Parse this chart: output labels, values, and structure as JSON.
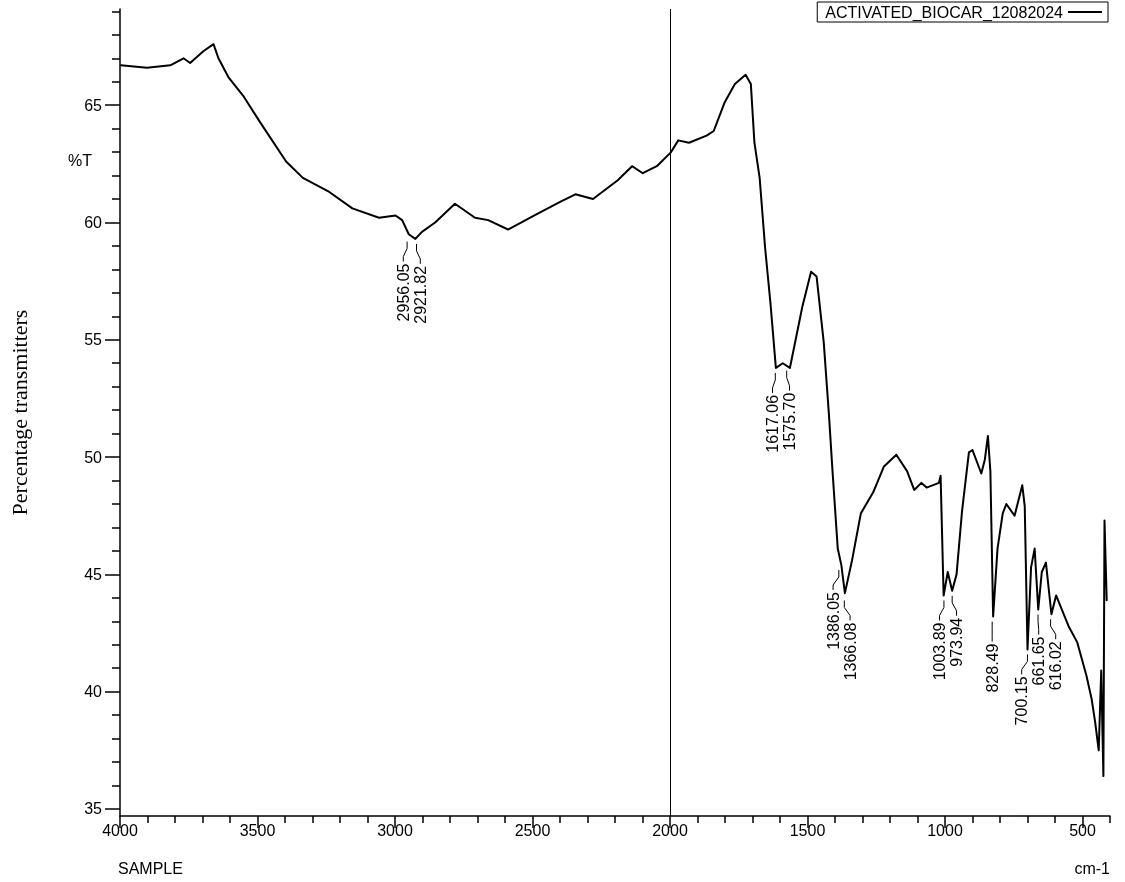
{
  "chart_data": {
    "type": "line",
    "xlabel": "cm-1",
    "ylabel": "Percentage transmitters",
    "xlim": [
      4000,
      400
    ],
    "ylim": [
      34.7,
      69.1
    ],
    "xticks": [
      4000,
      {
        "value": 3900,
        "label": null
      },
      {
        "value": 3800,
        "label": null
      },
      {
        "value": 3700,
        "label": null
      },
      {
        "value": 3600,
        "label": null
      },
      3500,
      {
        "value": 3400,
        "label": null
      },
      {
        "value": 3300,
        "label": null
      },
      {
        "value": 3200,
        "label": null
      },
      {
        "value": 3100,
        "label": null
      },
      3000,
      {
        "value": 2900,
        "label": null
      },
      {
        "value": 2800,
        "label": null
      },
      {
        "value": 2700,
        "label": null
      },
      {
        "value": 2600,
        "label": null
      },
      2500,
      {
        "value": 2400,
        "label": null
      },
      {
        "value": 2300,
        "label": null
      },
      {
        "value": 2200,
        "label": null
      },
      {
        "value": 2100,
        "label": null
      },
      2000,
      {
        "value": 1900,
        "label": null
      },
      {
        "value": 1800,
        "label": null
      },
      {
        "value": 1700,
        "label": null
      },
      {
        "value": 1600,
        "label": null
      },
      1500,
      {
        "value": 1400,
        "label": null
      },
      {
        "value": 1300,
        "label": null
      },
      {
        "value": 1200,
        "label": null
      },
      {
        "value": 1100,
        "label": null
      },
      1000,
      {
        "value": 900,
        "label": null
      },
      {
        "value": 800,
        "label": null
      },
      {
        "value": 700,
        "label": null
      },
      {
        "value": 600,
        "label": null
      },
      500,
      {
        "value": 400,
        "label": null
      }
    ],
    "yticks": [
      35,
      {
        "value": 36,
        "label": null
      },
      {
        "value": 37,
        "label": null
      },
      {
        "value": 38,
        "label": null
      },
      {
        "value": 39,
        "label": null
      },
      40,
      {
        "value": 41,
        "label": null
      },
      {
        "value": 42,
        "label": null
      },
      {
        "value": 43,
        "label": null
      },
      {
        "value": 44,
        "label": null
      },
      45,
      {
        "value": 46,
        "label": null
      },
      {
        "value": 47,
        "label": null
      },
      {
        "value": 48,
        "label": null
      },
      {
        "value": 49,
        "label": null
      },
      50,
      {
        "value": 51,
        "label": null
      },
      {
        "value": 52,
        "label": null
      },
      {
        "value": 53,
        "label": null
      },
      {
        "value": 54,
        "label": null
      },
      55,
      {
        "value": 56,
        "label": null
      },
      {
        "value": 57,
        "label": null
      },
      {
        "value": 58,
        "label": null
      },
      {
        "value": 59,
        "label": null
      },
      60,
      {
        "value": 61,
        "label": null
      },
      {
        "value": 62,
        "label": null
      },
      {
        "value": 63,
        "label": null
      },
      {
        "value": 64,
        "label": null
      },
      65,
      {
        "value": 66,
        "label": null
      },
      {
        "value": 67,
        "label": null
      },
      {
        "value": 68,
        "label": null
      },
      {
        "value": 69,
        "label": null
      }
    ],
    "grid": false,
    "legend": "top right",
    "marker": "none",
    "line_style": "solid",
    "ref_lines": [
      {
        "axis": "x",
        "value": 2000,
        "label": null,
        "color": "#000000"
      }
    ],
    "annotations": [
      "%T",
      "SAMPLE",
      {
        "text": "2956.05",
        "x": 2956.05,
        "y": 59.4
      },
      {
        "text": "2921.82",
        "x": 2921.82,
        "y": 59.3
      },
      {
        "text": "1617.06",
        "x": 1617.06,
        "y": 53.8
      },
      {
        "text": "1575.70",
        "x": 1575.7,
        "y": 53.9
      },
      {
        "text": "1386.05",
        "x": 1386.05,
        "y": 45.4
      },
      {
        "text": "1366.08",
        "x": 1366.08,
        "y": 44.1
      },
      {
        "text": "1003.89",
        "x": 1003.89,
        "y": 44.1
      },
      {
        "text": "973.94",
        "x": 973.94,
        "y": 44.3
      },
      {
        "text": "828.49",
        "x": 828.49,
        "y": 43.2
      },
      {
        "text": "700.15",
        "x": 700.15,
        "y": 41.8
      },
      {
        "text": "661.65",
        "x": 661.65,
        "y": 43.5
      },
      {
        "text": "616.02",
        "x": 616.02,
        "y": 43.3
      }
    ],
    "series": [
      {
        "name": "ACTIVATED_BIOCAR_12082024",
        "color": "#000000",
        "x": [
          3997,
          3902,
          3817,
          3769,
          3745,
          3697,
          3660,
          3642,
          3606,
          3552,
          3492,
          3396,
          3335,
          3239,
          3155,
          3058,
          2998,
          2974,
          2950,
          2926,
          2902,
          2854,
          2782,
          2709,
          2661,
          2589,
          2493,
          2396,
          2344,
          2280,
          2190,
          2138,
          2099,
          2048,
          1996,
          1970,
          1931,
          1867,
          1841,
          1802,
          1764,
          1725,
          1706,
          1693,
          1674,
          1654,
          1635,
          1615,
          1590,
          1564,
          1519,
          1487,
          1467,
          1441,
          1422,
          1409,
          1390,
          1377,
          1364,
          1338,
          1306,
          1261,
          1222,
          1177,
          1138,
          1112,
          1086,
          1067,
          1022,
          1016,
          1005,
          990,
          974,
          958,
          938,
          913,
          900,
          868,
          855,
          844,
          835,
          825,
          809,
          790,
          777,
          747,
          719,
          710,
          700,
          687,
          674,
          661,
          648,
          633,
          613,
          596,
          551,
          519,
          486,
          467,
          454,
          441,
          432,
          424,
          420,
          412
        ],
        "values": [
          66.7,
          66.6,
          66.7,
          67.0,
          66.8,
          67.3,
          67.6,
          67.0,
          66.2,
          65.4,
          64.3,
          62.6,
          61.9,
          61.3,
          60.6,
          60.2,
          60.3,
          60.1,
          59.5,
          59.3,
          59.6,
          60.0,
          60.8,
          60.2,
          60.1,
          59.7,
          60.3,
          60.9,
          61.2,
          61.0,
          61.8,
          62.4,
          62.1,
          62.4,
          63.0,
          63.5,
          63.4,
          63.7,
          63.9,
          65.1,
          65.9,
          66.3,
          65.9,
          63.4,
          61.9,
          58.9,
          56.6,
          53.8,
          54.0,
          53.8,
          56.4,
          57.9,
          57.7,
          54.9,
          51.8,
          49.4,
          46.1,
          45.4,
          44.2,
          45.6,
          47.6,
          48.5,
          49.6,
          50.1,
          49.4,
          48.6,
          48.9,
          48.7,
          48.9,
          49.2,
          44.1,
          45.1,
          44.3,
          45.0,
          47.7,
          50.2,
          50.3,
          49.3,
          49.9,
          50.9,
          49.4,
          43.2,
          46.1,
          47.6,
          48.0,
          47.5,
          48.8,
          47.9,
          41.8,
          45.3,
          46.1,
          43.5,
          45.1,
          45.5,
          43.3,
          44.1,
          42.8,
          42.1,
          40.7,
          39.7,
          38.7,
          37.5,
          40.9,
          36.4,
          47.3,
          43.9
        ]
      }
    ]
  }
}
